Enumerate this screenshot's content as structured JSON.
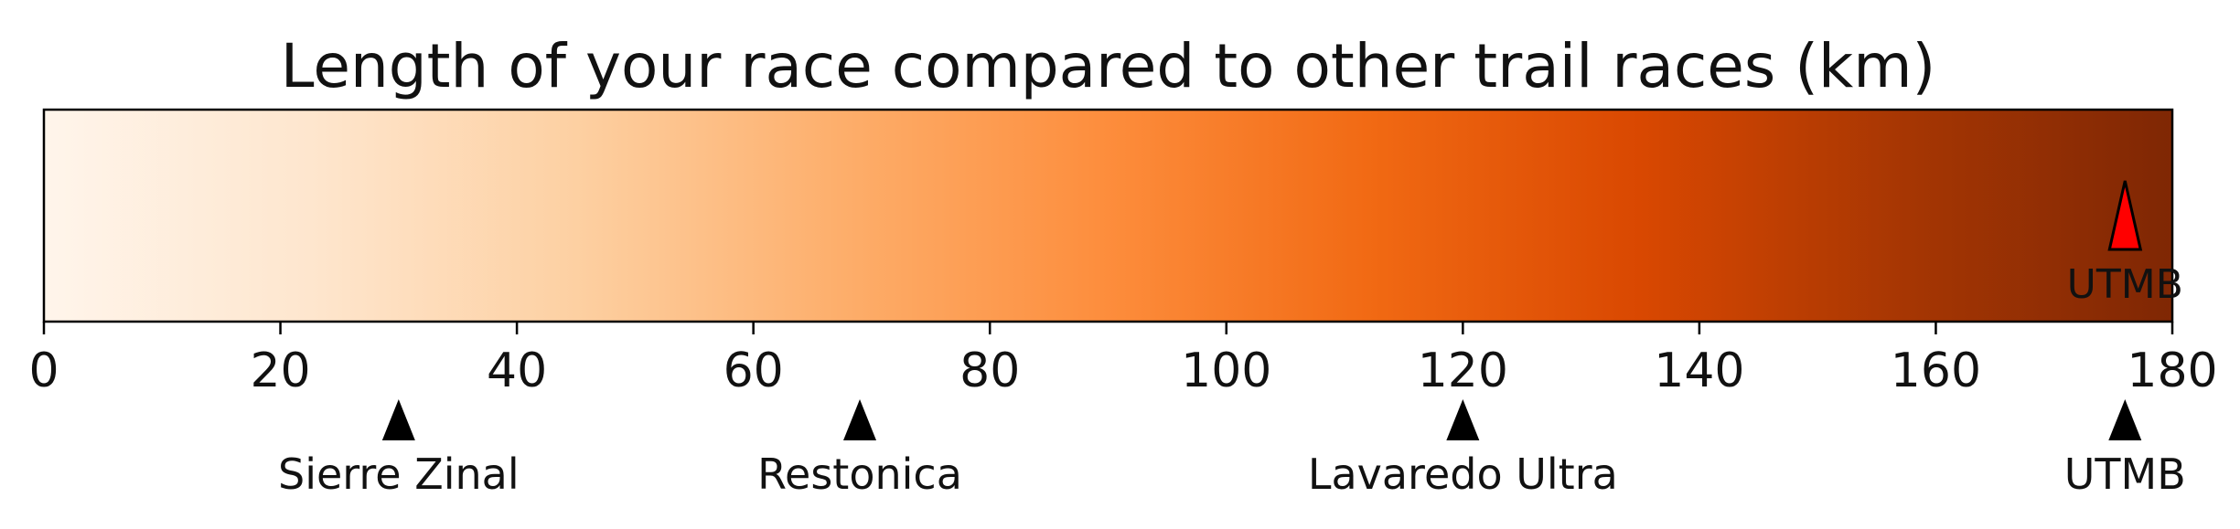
{
  "chart_data": {
    "type": "colorbar",
    "title": "Length of your race compared to other trail races (km)",
    "xlabel": "",
    "ylabel": "",
    "xlim": [
      0,
      180
    ],
    "ticks": [
      0,
      20,
      40,
      60,
      80,
      100,
      120,
      140,
      160,
      180
    ],
    "tick_labels": [
      "0",
      "20",
      "40",
      "60",
      "80",
      "100",
      "120",
      "140",
      "160",
      "180"
    ],
    "colormap": [
      "#fff5eb",
      "#fee6ce",
      "#fdd0a2",
      "#fdae6b",
      "#fd8d3c",
      "#f16913",
      "#d94801",
      "#a63603",
      "#7f2704"
    ],
    "reference_races": [
      {
        "name": "Sierre Zinal",
        "km": 30
      },
      {
        "name": "Restonica",
        "km": 69
      },
      {
        "name": "Lavaredo Ultra",
        "km": 120
      },
      {
        "name": "UTMB",
        "km": 176
      }
    ],
    "your_race": {
      "name": "UTMB",
      "km": 176
    },
    "colors": {
      "your_marker": "#ff0000",
      "reference_marker": "#000000",
      "frame": "#000000"
    }
  }
}
